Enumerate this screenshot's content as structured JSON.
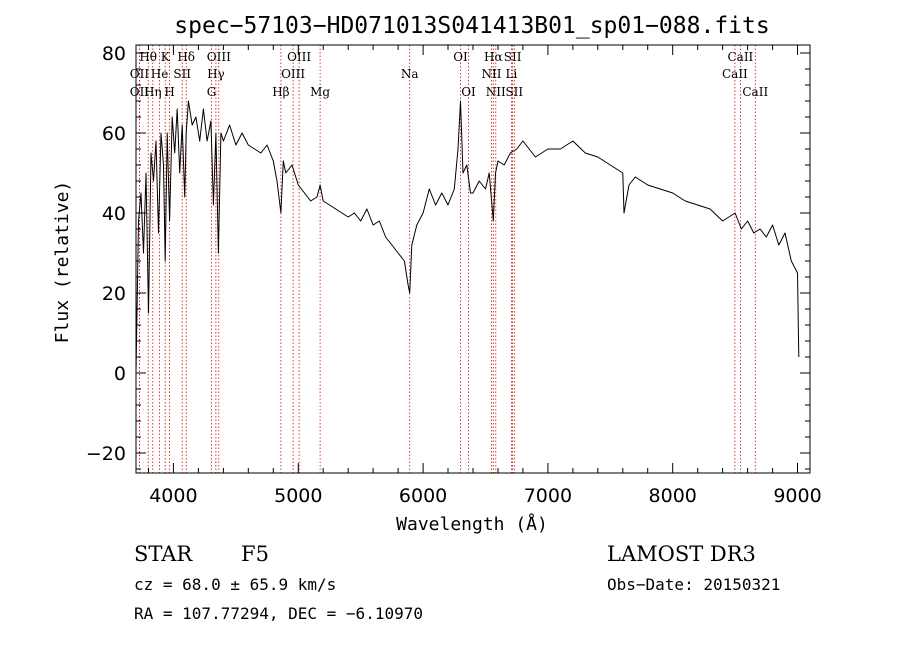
{
  "chart_data": {
    "type": "line",
    "title": "spec−57103−HD071013S041413B01_sp01−088.fits",
    "xlabel": "Wavelength (Å)",
    "ylabel": "Flux (relative)",
    "xlim": [
      3700,
      9100
    ],
    "ylim": [
      -25,
      82
    ],
    "xticks": [
      4000,
      5000,
      6000,
      7000,
      8000,
      9000
    ],
    "yticks": [
      -20,
      0,
      20,
      40,
      60,
      80
    ],
    "tick_labels": {
      "x": [
        "4000",
        "5000",
        "6000",
        "7000",
        "8000",
        "9000"
      ],
      "y": [
        "−20",
        "0",
        "20",
        "40",
        "60",
        "80"
      ]
    },
    "lines": [
      {
        "label": "Hθ",
        "wave": 3798,
        "row": 0
      },
      {
        "label": "OII",
        "wave": 3727,
        "row": 1
      },
      {
        "label": "OII",
        "wave": 3727,
        "row": 2
      },
      {
        "label": "K",
        "wave": 3934,
        "row": 0
      },
      {
        "label": "He",
        "wave": 3889,
        "row": 1
      },
      {
        "label": "Hη",
        "wave": 3835,
        "row": 2
      },
      {
        "label": "SII",
        "wave": 4070,
        "row": 1
      },
      {
        "label": "H",
        "wave": 3969,
        "row": 2
      },
      {
        "label": "Hδ",
        "wave": 4102,
        "row": 0
      },
      {
        "label": "OIII",
        "wave": 4363,
        "row": 0
      },
      {
        "label": "Hγ",
        "wave": 4340,
        "row": 1
      },
      {
        "label": "G",
        "wave": 4305,
        "row": 2
      },
      {
        "label": "Hβ",
        "wave": 4861,
        "row": 2
      },
      {
        "label": "OIII",
        "wave": 5007,
        "row": 0
      },
      {
        "label": "OIII",
        "wave": 4959,
        "row": 1
      },
      {
        "label": "Mg",
        "wave": 5175,
        "row": 2
      },
      {
        "label": "Na",
        "wave": 5893,
        "row": 1
      },
      {
        "label": "OI",
        "wave": 6300,
        "row": 0
      },
      {
        "label": "OI",
        "wave": 6364,
        "row": 2
      },
      {
        "label": "Hα",
        "wave": 6563,
        "row": 0
      },
      {
        "label": "SII",
        "wave": 6717,
        "row": 0
      },
      {
        "label": "NII",
        "wave": 6548,
        "row": 1
      },
      {
        "label": "Li",
        "wave": 6708,
        "row": 1
      },
      {
        "label": "NII",
        "wave": 6583,
        "row": 2
      },
      {
        "label": "SII",
        "wave": 6731,
        "row": 2
      },
      {
        "label": "CaII",
        "wave": 8542,
        "row": 0
      },
      {
        "label": "CaII",
        "wave": 8498,
        "row": 1
      },
      {
        "label": "CaII",
        "wave": 8662,
        "row": 2
      }
    ],
    "spectrum": {
      "x": [
        3700,
        3720,
        3740,
        3760,
        3780,
        3800,
        3820,
        3840,
        3860,
        3880,
        3900,
        3920,
        3934,
        3950,
        3969,
        3990,
        4010,
        4030,
        4050,
        4070,
        4090,
        4102,
        4120,
        4150,
        4180,
        4210,
        4240,
        4270,
        4300,
        4320,
        4340,
        4360,
        4380,
        4400,
        4450,
        4500,
        4550,
        4600,
        4650,
        4700,
        4750,
        4800,
        4830,
        4861,
        4880,
        4900,
        4950,
        5000,
        5050,
        5100,
        5150,
        5175,
        5200,
        5250,
        5300,
        5350,
        5400,
        5450,
        5500,
        5550,
        5600,
        5650,
        5700,
        5750,
        5800,
        5850,
        5880,
        5893,
        5910,
        5950,
        6000,
        6050,
        6100,
        6150,
        6200,
        6250,
        6280,
        6300,
        6320,
        6350,
        6380,
        6400,
        6450,
        6500,
        6530,
        6563,
        6580,
        6600,
        6650,
        6700,
        6750,
        6800,
        6900,
        7000,
        7100,
        7200,
        7300,
        7400,
        7500,
        7600,
        7610,
        7650,
        7700,
        7800,
        7900,
        8000,
        8100,
        8200,
        8300,
        8400,
        8500,
        8550,
        8600,
        8650,
        8700,
        8750,
        8800,
        8850,
        8900,
        8950,
        9000,
        9010
      ],
      "y": [
        0,
        38,
        45,
        30,
        50,
        15,
        55,
        48,
        58,
        35,
        60,
        52,
        28,
        60,
        38,
        64,
        55,
        66,
        50,
        62,
        44,
        60,
        68,
        62,
        64,
        58,
        66,
        58,
        63,
        42,
        60,
        30,
        60,
        58,
        62,
        57,
        60,
        57,
        56,
        55,
        57,
        53,
        48,
        40,
        53,
        50,
        52,
        47,
        45,
        43,
        44,
        47,
        43,
        42,
        41,
        40,
        39,
        40,
        38,
        41,
        37,
        38,
        34,
        32,
        30,
        28,
        22,
        20,
        32,
        37,
        40,
        46,
        42,
        45,
        42,
        46,
        56,
        68,
        50,
        52,
        45,
        45,
        48,
        46,
        50,
        38,
        50,
        53,
        52,
        55,
        56,
        58,
        54,
        56,
        56,
        58,
        55,
        54,
        52,
        50,
        40,
        47,
        49,
        47,
        46,
        45,
        43,
        42,
        41,
        38,
        40,
        36,
        38,
        35,
        36,
        34,
        37,
        32,
        35,
        28,
        25,
        4
      ]
    }
  },
  "info": {
    "object_class": "STAR",
    "subclass": "F5",
    "survey": "LAMOST DR3",
    "cz": "cz = 68.0 ± 65.9 km/s",
    "obs_date": "Obs−Date: 20150321",
    "coords": "RA = 107.77294, DEC =  −6.10970"
  }
}
